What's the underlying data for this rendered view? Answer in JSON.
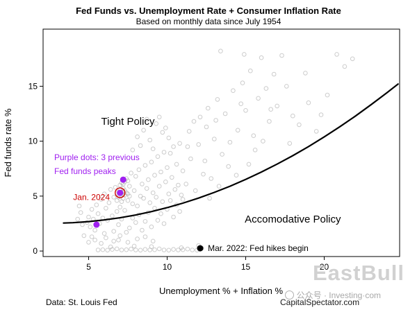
{
  "title": "Fed Funds vs. Unemployment Rate + Consumer Inflation Rate",
  "subtitle": "Based on monthly data since July 1954",
  "footer": {
    "left": "Data: St. Louis Fed",
    "right": "CapitalSpectator.com"
  },
  "watermark": {
    "brand": "EastBull",
    "social": "公众号 · Investing·com"
  },
  "chart_data": {
    "type": "scatter",
    "title": "Fed Funds vs. Unemployment Rate + Consumer Inflation Rate",
    "subtitle": "Based on monthly data since July 1954",
    "xlabel": "Unemployment % + Inflation %",
    "ylabel": "Fed funds rate %",
    "xlim": [
      2.1,
      24.8
    ],
    "ylim": [
      -0.5,
      20.2
    ],
    "x_ticks": [
      5,
      10,
      15,
      20
    ],
    "y_ticks": [
      0,
      5,
      10,
      15
    ],
    "grid": false,
    "point_color": "#9a9a9a",
    "points": [
      [
        5.6,
        0.1
      ],
      [
        5.9,
        0.12
      ],
      [
        6.2,
        0.08
      ],
      [
        6.5,
        0.15
      ],
      [
        6.8,
        0.2
      ],
      [
        7.1,
        0.1
      ],
      [
        7.4,
        0.12
      ],
      [
        7.7,
        0.18
      ],
      [
        8.0,
        0.1
      ],
      [
        8.3,
        0.08
      ],
      [
        8.6,
        0.15
      ],
      [
        8.9,
        0.1
      ],
      [
        9.2,
        0.12
      ],
      [
        9.5,
        0.2
      ],
      [
        9.8,
        0.1
      ],
      [
        10.1,
        0.08
      ],
      [
        10.4,
        0.15
      ],
      [
        10.7,
        0.1
      ],
      [
        11.0,
        0.12
      ],
      [
        11.3,
        0.18
      ],
      [
        11.6,
        0.1
      ],
      [
        11.9,
        0.08
      ],
      [
        12.2,
        0.25
      ],
      [
        9.0,
        0.4
      ],
      [
        7.9,
        0.45
      ],
      [
        6.4,
        0.38
      ],
      [
        10.9,
        0.3
      ],
      [
        12.0,
        0.5
      ],
      [
        5.0,
        0.8
      ],
      [
        5.4,
        1.0
      ],
      [
        5.8,
        0.7
      ],
      [
        6.1,
        1.2
      ],
      [
        6.6,
        0.9
      ],
      [
        7.0,
        1.4
      ],
      [
        7.5,
        0.8
      ],
      [
        8.1,
        1.1
      ],
      [
        8.6,
        1.3
      ],
      [
        9.1,
        0.9
      ],
      [
        6.9,
        1.0
      ],
      [
        5.2,
        1.3
      ],
      [
        4.9,
        2.6
      ],
      [
        5.0,
        3.1
      ],
      [
        5.1,
        2.2
      ],
      [
        5.2,
        3.8
      ],
      [
        5.3,
        2.9
      ],
      [
        5.4,
        1.9
      ],
      [
        5.5,
        4.2
      ],
      [
        5.6,
        3.4
      ],
      [
        5.7,
        2.5
      ],
      [
        5.8,
        4.7
      ],
      [
        5.9,
        3.0
      ],
      [
        6.0,
        1.6
      ],
      [
        6.0,
        5.2
      ],
      [
        6.1,
        3.9
      ],
      [
        6.2,
        2.8
      ],
      [
        6.3,
        4.4
      ],
      [
        6.4,
        5.6
      ],
      [
        6.5,
        3.2
      ],
      [
        6.6,
        1.8
      ],
      [
        6.6,
        4.9
      ],
      [
        6.7,
        5.8
      ],
      [
        6.8,
        3.6
      ],
      [
        6.9,
        2.4
      ],
      [
        6.9,
        5.1
      ],
      [
        7.0,
        4.0
      ],
      [
        7.1,
        6.2
      ],
      [
        7.1,
        2.9
      ],
      [
        7.2,
        5.4
      ],
      [
        7.3,
        3.7
      ],
      [
        7.4,
        6.6
      ],
      [
        7.4,
        1.7
      ],
      [
        7.5,
        4.6
      ],
      [
        7.6,
        5.9
      ],
      [
        7.6,
        2.1
      ],
      [
        7.7,
        7.1
      ],
      [
        7.8,
        4.3
      ],
      [
        7.8,
        3.0
      ],
      [
        7.9,
        5.5
      ],
      [
        8.0,
        6.8
      ],
      [
        8.0,
        2.6
      ],
      [
        8.1,
        4.1
      ],
      [
        8.2,
        7.4
      ],
      [
        8.2,
        3.3
      ],
      [
        8.3,
        5.0
      ],
      [
        8.4,
        6.1
      ],
      [
        8.4,
        1.9
      ],
      [
        8.5,
        4.8
      ],
      [
        8.6,
        7.8
      ],
      [
        8.6,
        2.7
      ],
      [
        8.7,
        5.7
      ],
      [
        8.8,
        6.5
      ],
      [
        8.8,
        3.5
      ],
      [
        8.9,
        4.4
      ],
      [
        9.0,
        8.1
      ],
      [
        9.0,
        2.2
      ],
      [
        9.1,
        5.3
      ],
      [
        9.2,
        6.9
      ],
      [
        9.2,
        3.9
      ],
      [
        9.3,
        4.9
      ],
      [
        9.4,
        8.6
      ],
      [
        9.4,
        2.8
      ],
      [
        9.5,
        5.9
      ],
      [
        9.6,
        7.2
      ],
      [
        9.6,
        3.4
      ],
      [
        9.7,
        4.5
      ],
      [
        9.8,
        9.0
      ],
      [
        9.8,
        2.5
      ],
      [
        9.9,
        6.3
      ],
      [
        10.0,
        7.6
      ],
      [
        10.0,
        3.8
      ],
      [
        10.1,
        5.2
      ],
      [
        10.2,
        8.9
      ],
      [
        10.2,
        4.6
      ],
      [
        10.3,
        6.7
      ],
      [
        10.4,
        9.5
      ],
      [
        10.4,
        3.1
      ],
      [
        10.5,
        5.6
      ],
      [
        10.6,
        7.9
      ],
      [
        10.6,
        4.2
      ],
      [
        10.7,
        6.0
      ],
      [
        10.8,
        9.8
      ],
      [
        10.8,
        3.6
      ],
      [
        10.9,
        5.1
      ],
      [
        11.0,
        7.3
      ],
      [
        11.0,
        4.7
      ],
      [
        6.8,
        4.6
      ],
      [
        6.9,
        4.9
      ],
      [
        7.0,
        5.0
      ],
      [
        7.0,
        5.6
      ],
      [
        7.1,
        5.2
      ],
      [
        7.2,
        4.8
      ],
      [
        7.2,
        5.7
      ],
      [
        7.3,
        5.1
      ],
      [
        7.3,
        5.5
      ],
      [
        7.4,
        5.3
      ],
      [
        7.1,
        4.5
      ],
      [
        6.9,
        5.4
      ],
      [
        7.5,
        5.2
      ],
      [
        7.6,
        5.0
      ],
      [
        7.0,
        6.0
      ],
      [
        7.3,
        6.3
      ],
      [
        7.5,
        6.4
      ],
      [
        7.2,
        6.1
      ],
      [
        7.8,
        9.2
      ],
      [
        8.1,
        10.4
      ],
      [
        8.5,
        11.0
      ],
      [
        8.9,
        10.1
      ],
      [
        9.3,
        11.6
      ],
      [
        9.7,
        10.8
      ],
      [
        8.3,
        9.6
      ],
      [
        8.7,
        12.0
      ],
      [
        9.1,
        9.3
      ],
      [
        9.9,
        11.2
      ],
      [
        10.1,
        10.3
      ],
      [
        9.5,
        12.2
      ],
      [
        4.3,
        2.9
      ],
      [
        4.5,
        3.5
      ],
      [
        4.6,
        2.4
      ],
      [
        4.4,
        4.1
      ],
      [
        4.7,
        1.4
      ],
      [
        11.2,
        6.1
      ],
      [
        11.5,
        8.4
      ],
      [
        11.8,
        5.5
      ],
      [
        12.0,
        9.7
      ],
      [
        12.3,
        7.0
      ],
      [
        12.5,
        11.3
      ],
      [
        12.8,
        6.6
      ],
      [
        13.0,
        10.2
      ],
      [
        13.2,
        13.8
      ],
      [
        13.5,
        8.8
      ],
      [
        13.7,
        12.5
      ],
      [
        14.0,
        9.9
      ],
      [
        14.2,
        14.6
      ],
      [
        14.5,
        11.0
      ],
      [
        14.8,
        15.3
      ],
      [
        15.0,
        12.8
      ],
      [
        15.3,
        16.4
      ],
      [
        15.5,
        10.5
      ],
      [
        15.8,
        13.9
      ],
      [
        16.0,
        17.6
      ],
      [
        16.3,
        14.8
      ],
      [
        16.5,
        11.8
      ],
      [
        16.8,
        16.1
      ],
      [
        17.0,
        13.2
      ],
      [
        17.3,
        17.8
      ],
      [
        17.6,
        15.0
      ],
      [
        18.0,
        12.3
      ],
      [
        13.3,
        5.9
      ],
      [
        12.7,
        4.8
      ],
      [
        11.4,
        10.9
      ],
      [
        12.1,
        12.2
      ],
      [
        13.9,
        7.7
      ],
      [
        14.4,
        6.9
      ],
      [
        15.6,
        9.2
      ],
      [
        16.1,
        10.0
      ],
      [
        17.8,
        9.8
      ],
      [
        18.4,
        11.5
      ],
      [
        19.0,
        13.5
      ],
      [
        19.5,
        10.9
      ],
      [
        20.2,
        14.2
      ],
      [
        20.8,
        17.9
      ],
      [
        21.3,
        16.8
      ],
      [
        21.8,
        17.5
      ],
      [
        12.4,
        8.2
      ],
      [
        13.1,
        11.9
      ],
      [
        14.7,
        13.4
      ],
      [
        15.2,
        7.9
      ],
      [
        16.6,
        12.9
      ],
      [
        18.8,
        16.2
      ],
      [
        19.8,
        12.4
      ],
      [
        13.4,
        18.2
      ],
      [
        14.9,
        17.9
      ],
      [
        11.3,
        9.5
      ],
      [
        11.7,
        11.8
      ],
      [
        12.6,
        13.0
      ]
    ],
    "trend_line": [
      [
        3.4,
        2.55
      ],
      [
        4,
        2.58
      ],
      [
        5,
        2.68
      ],
      [
        6,
        2.83
      ],
      [
        7,
        3.03
      ],
      [
        8,
        3.28
      ],
      [
        9,
        3.59
      ],
      [
        10,
        3.95
      ],
      [
        11,
        4.36
      ],
      [
        12,
        4.82
      ],
      [
        13,
        5.34
      ],
      [
        14,
        5.9
      ],
      [
        15,
        6.52
      ],
      [
        16,
        7.19
      ],
      [
        17,
        7.91
      ],
      [
        18,
        8.68
      ],
      [
        19,
        9.51
      ],
      [
        20,
        10.39
      ],
      [
        21,
        11.32
      ],
      [
        22,
        12.3
      ],
      [
        23,
        13.34
      ],
      [
        24,
        14.42
      ],
      [
        24.7,
        15.2
      ]
    ],
    "highlights": {
      "purple_dots": {
        "color": "#a020f0",
        "points": [
          [
            5.5,
            2.4
          ],
          [
            7.0,
            5.3
          ],
          [
            7.2,
            6.5
          ]
        ]
      },
      "jan_2024": {
        "label": "Jan. 2024",
        "color": "#cc0000",
        "point": [
          7.0,
          5.3
        ]
      },
      "mar_2022": {
        "label": "Mar. 2022: Fed hikes begin",
        "color": "#000000",
        "point": [
          12.1,
          0.25
        ]
      }
    },
    "labels": [
      {
        "id": "tight-policy",
        "text": "Tight Policy",
        "x": 7.5,
        "y": 11.5,
        "size": 15,
        "color": "#000000",
        "anchor": "middle"
      },
      {
        "id": "accommodative-policy",
        "text": "Accomodative Policy",
        "x": 18.0,
        "y": 2.6,
        "size": 15,
        "color": "#000000",
        "anchor": "middle"
      },
      {
        "id": "purple-note-1",
        "text": "Purple dots: 3 previous",
        "x": 2.81,
        "y": 8.26,
        "size": 12,
        "color": "#a020f0",
        "anchor": "start"
      },
      {
        "id": "purple-note-2",
        "text": "Fed funds peaks",
        "x": 2.81,
        "y": 7.0,
        "size": 12,
        "color": "#a020f0",
        "anchor": "start"
      },
      {
        "id": "jan-2024",
        "text": "Jan. 2024",
        "x": 6.35,
        "y": 4.65,
        "size": 12,
        "color": "#cc0000",
        "anchor": "end"
      },
      {
        "id": "mar-2022",
        "text": "Mar. 2022: Fed hikes begin",
        "x": 12.59,
        "y": 0.0,
        "size": 12,
        "color": "#000000",
        "anchor": "start"
      }
    ]
  }
}
